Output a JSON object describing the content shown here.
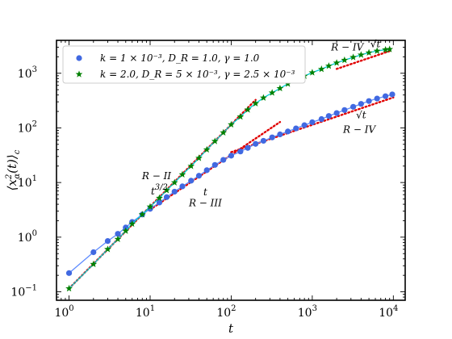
{
  "chart_data": {
    "type": "line",
    "x_scale": "log",
    "y_scale": "log",
    "xlabel": "t",
    "ylabel": "⟨x²α(t)⟩c",
    "xlim": [
      0.7,
      14000
    ],
    "ylim": [
      0.07,
      4000
    ],
    "x_ticks": [
      {
        "value": 1,
        "mantissa": "10",
        "exp": "0"
      },
      {
        "value": 10,
        "mantissa": "10",
        "exp": "1"
      },
      {
        "value": 100,
        "mantissa": "10",
        "exp": "2"
      },
      {
        "value": 1000,
        "mantissa": "10",
        "exp": "3"
      },
      {
        "value": 10000,
        "mantissa": "10",
        "exp": "4"
      }
    ],
    "y_ticks": [
      {
        "value": 0.1,
        "mantissa": "10",
        "exp": "−1"
      },
      {
        "value": 1,
        "mantissa": "10",
        "exp": "0"
      },
      {
        "value": 10,
        "mantissa": "10",
        "exp": "1"
      },
      {
        "value": 100,
        "mantissa": "10",
        "exp": "2"
      },
      {
        "value": 1000,
        "mantissa": "10",
        "exp": "3"
      }
    ],
    "legend_position": "top-left",
    "series": [
      {
        "name": "k = 1 × 10⁻³, D_R = 1.0, γ = 1.0",
        "legend_label": "k = 1 × 10⁻³, D_R = 1.0, γ = 1.0",
        "marker": "circle",
        "marker_color": "#4169e1",
        "line_color": "#5f8cff",
        "x": [
          1,
          2,
          3,
          4,
          5,
          6,
          8,
          10,
          13,
          16,
          20,
          25,
          32,
          40,
          50,
          63,
          80,
          100,
          130,
          160,
          200,
          250,
          320,
          400,
          500,
          630,
          800,
          1000,
          1300,
          1600,
          2000,
          2500,
          3200,
          4000,
          5000,
          6300,
          8000,
          9700
        ],
        "y": [
          0.22,
          0.53,
          0.85,
          1.15,
          1.5,
          1.9,
          2.6,
          3.3,
          4.3,
          5.4,
          6.8,
          8.5,
          10.8,
          13.3,
          16.8,
          21,
          26,
          31,
          37,
          43,
          51,
          58,
          67,
          76,
          86,
          98,
          112,
          127,
          145,
          165,
          187,
          212,
          243,
          275,
          310,
          345,
          380,
          410
        ]
      },
      {
        "name": "k = 2.0, D_R = 5 × 10⁻³, γ = 2.5 × 10⁻³",
        "legend_label": "k = 2.0, D_R = 5 × 10⁻³, γ = 2.5 × 10⁻³",
        "marker": "star",
        "marker_color": "#008000",
        "line_color": "#00ced1",
        "x": [
          1,
          2,
          3,
          4,
          5,
          6,
          8,
          10,
          13,
          16,
          20,
          25,
          32,
          40,
          50,
          63,
          80,
          100,
          130,
          160,
          200,
          250,
          320,
          400,
          500,
          630,
          800,
          1000,
          1300,
          1600,
          2000,
          2500,
          3200,
          4000,
          5000,
          6300,
          8000,
          9000
        ],
        "y": [
          0.115,
          0.32,
          0.6,
          0.92,
          1.3,
          1.75,
          2.6,
          3.6,
          5.2,
          7.2,
          10,
          14,
          20,
          28,
          40,
          57,
          82,
          115,
          160,
          215,
          280,
          355,
          440,
          530,
          640,
          760,
          890,
          1030,
          1190,
          1360,
          1550,
          1740,
          1960,
          2170,
          2380,
          2560,
          2700,
          2750
        ]
      }
    ],
    "guides": [
      {
        "label": "R − II  t^{3/2}",
        "exponent": 1.5,
        "x_from": 1,
        "x_to": 200,
        "y_at_x_from": 0.115
      },
      {
        "label": "R − III  t",
        "exponent": 1.0,
        "x_from": 10,
        "x_to": 400,
        "y_at_x_from": 3.2
      },
      {
        "label": "√t",
        "exponent": 0.5,
        "x_from": 100,
        "x_to": 10000,
        "y_at_x_from": 36
      },
      {
        "label": "R − IV  √t",
        "exponent": 0.5,
        "x_from": 2000,
        "x_to": 9000,
        "y_at_x_from": 1200
      }
    ],
    "annotations": [
      {
        "text": "R − II",
        "x": 12,
        "y": 11.5
      },
      {
        "text": "t^{3/2}",
        "x": 13,
        "y": 6.0
      },
      {
        "text": "t",
        "x": 48,
        "y": 5.8
      },
      {
        "text": "R − III",
        "x": 48,
        "y": 3.7
      },
      {
        "text": "R − IV",
        "x": 2700,
        "y": 2600
      },
      {
        "text": "√t",
        "x": 6000,
        "y": 3000
      },
      {
        "text": "√t",
        "x": 4000,
        "y": 150
      },
      {
        "text": "R − IV",
        "x": 3800,
        "y": 82
      }
    ]
  },
  "labels": {
    "xlabel": "t",
    "ylabel_main": "⟨x",
    "ylabel_sup": "2",
    "ylabel_sub": "α",
    "ylabel_rest": "(t)⟩",
    "ylabel_c": "c"
  }
}
